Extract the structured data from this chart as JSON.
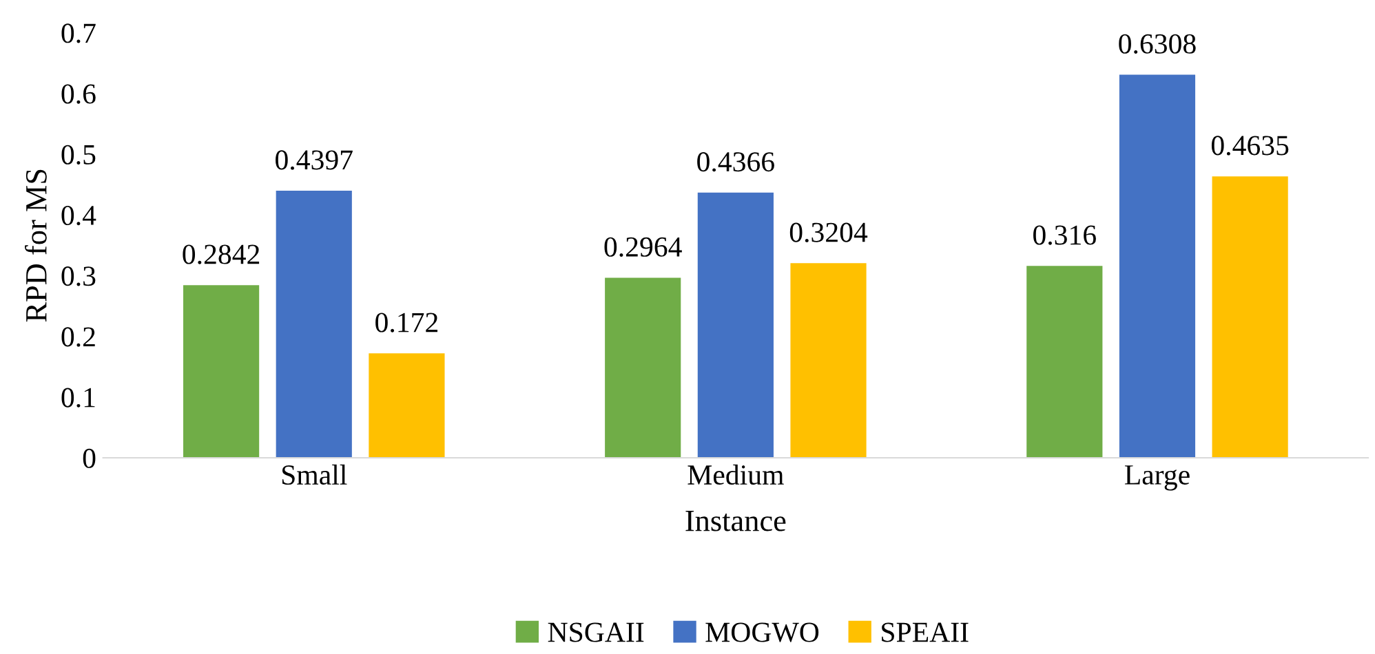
{
  "chart_data": {
    "type": "bar",
    "xlabel": "Instance",
    "ylabel": "RPD for MS",
    "categories": [
      "Small",
      "Medium",
      "Large"
    ],
    "series": [
      {
        "name": "NSGAII",
        "color": "#70ad47",
        "values": [
          0.2842,
          0.2964,
          0.316
        ]
      },
      {
        "name": "MOGWO",
        "color": "#4472c4",
        "values": [
          0.4397,
          0.4366,
          0.6308
        ]
      },
      {
        "name": "SPEAII",
        "color": "#ffc000",
        "values": [
          0.172,
          0.3204,
          0.4635
        ]
      }
    ],
    "ylim": [
      0,
      0.7
    ],
    "yticks": [
      0,
      0.1,
      0.2,
      0.3,
      0.4,
      0.5,
      0.6,
      0.7
    ],
    "grid": false,
    "legend": "bottom",
    "data_labels": true
  }
}
